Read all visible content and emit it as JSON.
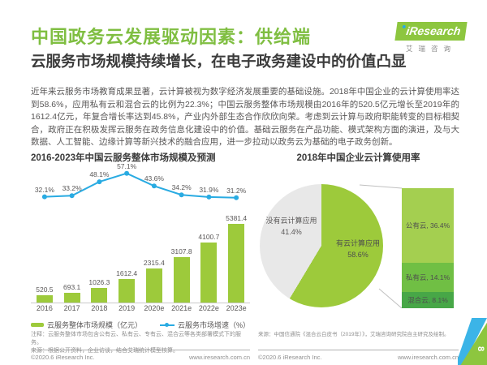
{
  "page": {
    "title": "中国政务云发展驱动因素：供给端",
    "subtitle": "云服务市场规模持续增长，在电子政务建设中的价值凸显",
    "body_text": "近年来云服务市场教育成果显著，云计算被视为数字经济发展重要的基础设施。2018年中国企业的云计算使用率达到58.6%，应用私有云和混合云的比例为22.3%；中国云服务整体市场规模由2016年的520.5亿元增长至2019年的1612.4亿元，年复合增长率达到45.8%，产业内外部生态合作欣欣向荣。考虑到云计算与政府职能转变的目标相契合，政府正在积极发挥云服务在政务信息化建设中的价值。基础云服务在产品功能、模式架构方面的演进，及与大数据、人工智能、边缘计算等新兴技术的融合应用，进一步拉动以政务云为基础的电子政务创新。",
    "page_number": "8"
  },
  "logo": {
    "brand_i": "i",
    "brand": "Research",
    "cn": "艾瑞咨询"
  },
  "colors": {
    "title_green": "#7fbe41",
    "bar_green": "#9dca3b",
    "line_blue": "#29abe2",
    "pie_green": "#9dca3b",
    "pie_gray": "#e8e8e8",
    "seg_public": "#a4cf50",
    "seg_private": "#70bf44",
    "seg_hybrid": "#47a747",
    "text_dark": "#3b3b3b",
    "text_gray": "#595757"
  },
  "left_chart": {
    "title": "2016-2023年中国云服务整体市场规模及预测",
    "note_line1": "注释：云服务整体市场包含公有云、私有云、专有云、混合云等各类部署模式下的服务。",
    "note_line2": "来源：根据公开资料，企业访谈，结合艾瑞统计模型核算。",
    "copyright": "©2020.6 iResearch Inc.",
    "website": "www.iresearch.com.cn"
  },
  "right_chart": {
    "title": "2018年中国企业云计算使用率",
    "note": "来源：中国信通院《混合云白皮书（2019年）》，艾瑞咨询研究院自主研究及绘制。",
    "copyright": "©2020.6 iResearch Inc.",
    "website": "www.iresearch.com.cn"
  },
  "chart_data": [
    {
      "type": "bar",
      "subtype": "bar+line combo",
      "title": "2016-2023年中国云服务整体市场规模及预测",
      "categories": [
        "2016",
        "2017",
        "2018",
        "2019",
        "2020e",
        "2021e",
        "2022e",
        "2023e"
      ],
      "series": [
        {
          "name": "云服务整体市场规模（亿元）",
          "type": "bar",
          "color": "#9dca3b",
          "values": [
            520.5,
            693.1,
            1026.3,
            1612.4,
            2315.4,
            3107.8,
            4100.7,
            5381.4
          ]
        },
        {
          "name": "云服务市场增速（%）",
          "type": "line",
          "color": "#29abe2",
          "values": [
            32.1,
            33.2,
            48.1,
            57.1,
            43.6,
            34.2,
            31.9,
            31.2
          ]
        }
      ],
      "legend_position": "bottom",
      "grid": false
    },
    {
      "type": "pie",
      "title": "2018年中国企业云计算使用率",
      "slices": [
        {
          "label": "有云计算应用",
          "value": 58.6,
          "color": "#9dca3b"
        },
        {
          "label": "没有云计算应用",
          "value": 41.4,
          "color": "#e8e8e8"
        }
      ],
      "breakdown": [
        {
          "label": "公有云",
          "value": 36.4,
          "color": "#a4cf50"
        },
        {
          "label": "私有云",
          "value": 14.1,
          "color": "#70bf44"
        },
        {
          "label": "混合云",
          "value": 8.1,
          "color": "#47a747"
        }
      ]
    }
  ]
}
